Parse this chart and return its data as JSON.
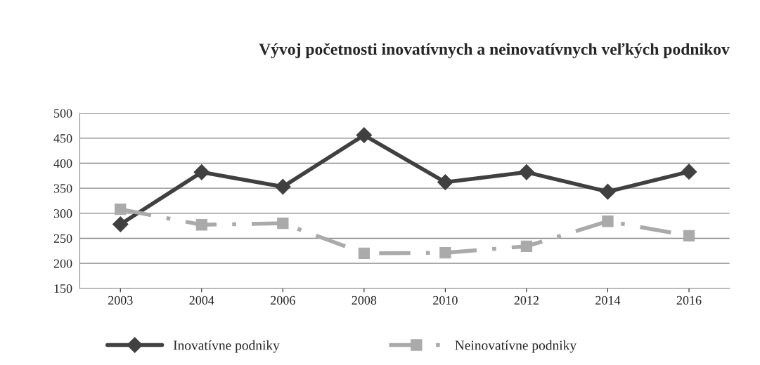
{
  "chart_data": {
    "type": "line",
    "title": "Vývoj početnosti inovatívnych a neinovatívnych veľkých podnikov",
    "categories": [
      "2003",
      "2004",
      "2006",
      "2008",
      "2010",
      "2012",
      "2014",
      "2016"
    ],
    "series": [
      {
        "name": "Inovatívne podniky",
        "color": "#404040",
        "marker": "diamond",
        "line_style": "solid",
        "values": [
          278,
          382,
          353,
          456,
          362,
          382,
          343,
          383
        ]
      },
      {
        "name": "Neinovatívne podniky",
        "color": "#aaaaaa",
        "marker": "square",
        "line_style": "dashed",
        "values": [
          308,
          277,
          280,
          220,
          221,
          234,
          284,
          255
        ]
      }
    ],
    "ylim": [
      150,
      500
    ],
    "yticks": [
      150,
      200,
      250,
      300,
      350,
      400,
      450,
      500
    ],
    "grid": "y",
    "legend": "bottom"
  }
}
